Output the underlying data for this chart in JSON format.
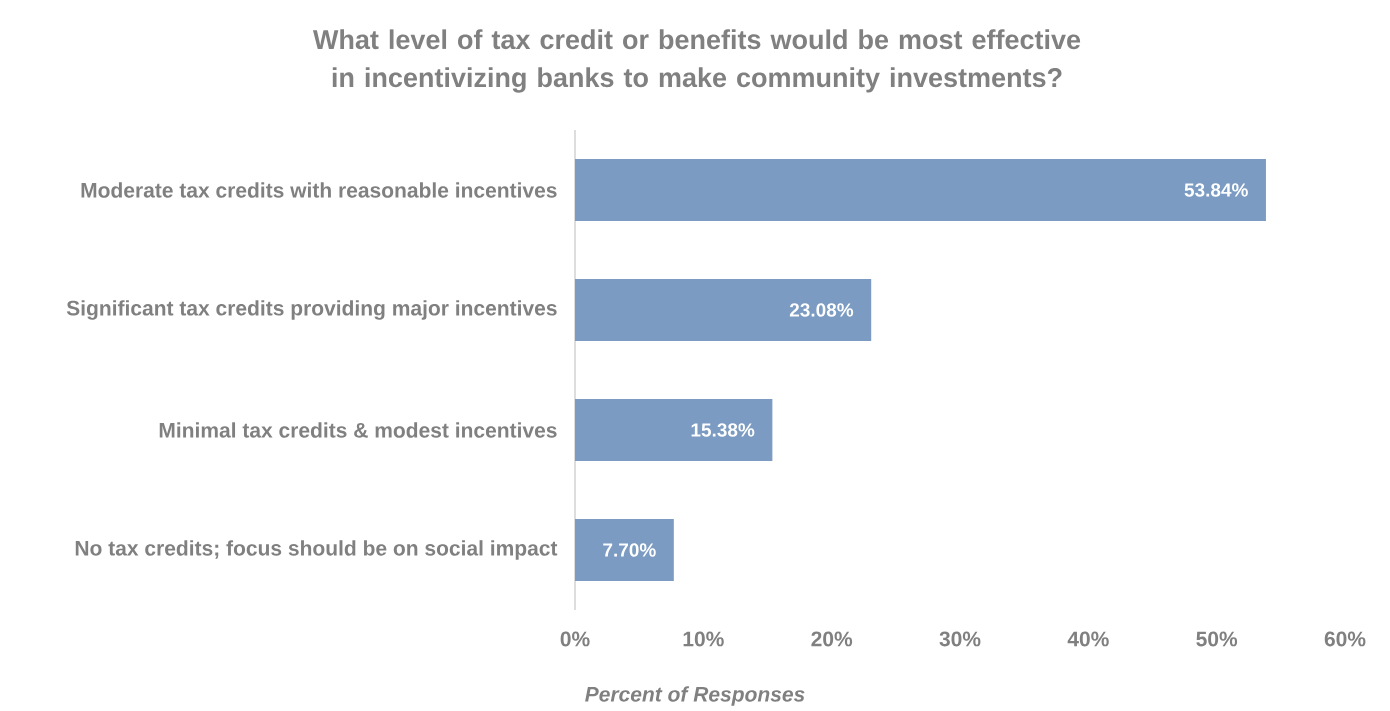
{
  "chart_data": {
    "type": "bar",
    "orientation": "horizontal",
    "title": "What level of tax credit or benefits would be most effective in incentivizing banks to make community investments?",
    "categories": [
      "Moderate tax credits with reasonable incentives",
      "Significant tax credits providing major incentives",
      "Minimal tax credits & modest incentives",
      "No tax credits; focus should be on social impact"
    ],
    "values": [
      53.84,
      23.08,
      15.38,
      7.7
    ],
    "value_labels": [
      "53.84%",
      "23.08%",
      "15.38%",
      "7.70%"
    ],
    "color": "#7b9bc2",
    "xlabel": "Percent of Responses",
    "xlim": [
      0,
      60
    ],
    "xticks": [
      {
        "value": 0,
        "label": "0%"
      },
      {
        "value": 10,
        "label": "10%"
      },
      {
        "value": 20,
        "label": "20%"
      },
      {
        "value": 30,
        "label": "30%"
      },
      {
        "value": 40,
        "label": "40%"
      },
      {
        "value": 50,
        "label": "50%"
      },
      {
        "value": 60,
        "label": "60%"
      }
    ]
  }
}
